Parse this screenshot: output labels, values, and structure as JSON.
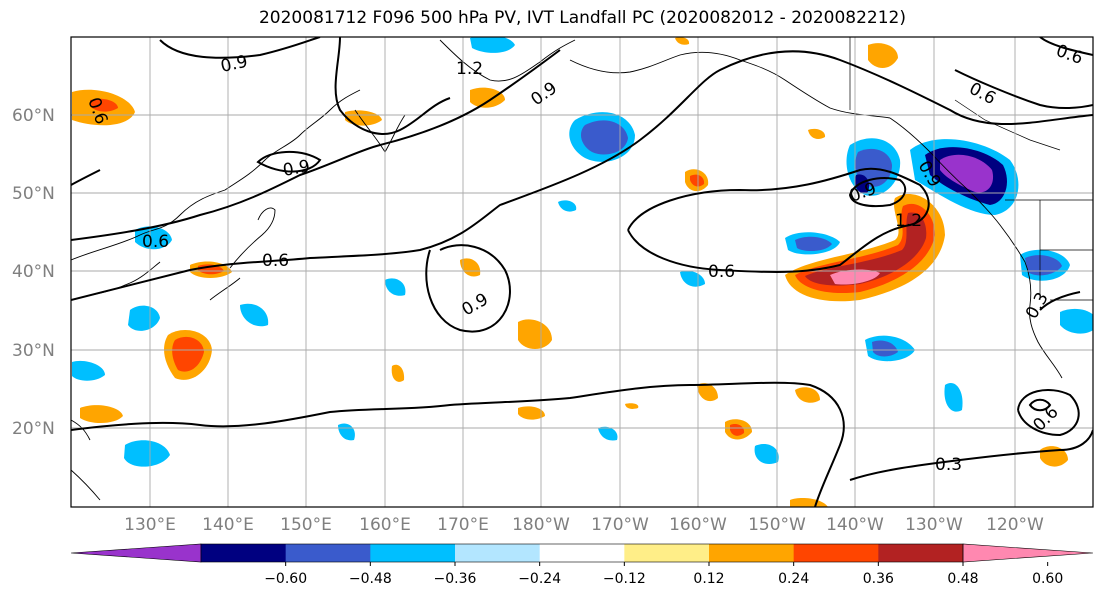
{
  "title": "2020081712 F096 500 hPa PV, IVT Landfall PC (2020082012 - 2020082212)",
  "map": {
    "lon_labels": [
      "130°E",
      "140°E",
      "150°E",
      "160°E",
      "170°E",
      "180°W",
      "170°W",
      "160°W",
      "150°W",
      "140°W",
      "130°W",
      "120°W"
    ],
    "lat_labels": [
      "60°N",
      "50°N",
      "40°N",
      "30°N",
      "20°N"
    ],
    "contour_labels": [
      "0.9",
      "1.2",
      "0.9",
      "0.9",
      "0.6",
      "0.6",
      "0.6",
      "0.9",
      "1.2",
      "0.9",
      "0.6",
      "0.6",
      "0.3",
      "0.3",
      "0.6",
      "0.6",
      "0.9"
    ]
  },
  "colorbar": {
    "ticks": [
      "−0.60",
      "−0.48",
      "−0.36",
      "−0.24",
      "−0.12",
      "0.12",
      "0.24",
      "0.36",
      "0.48",
      "0.60"
    ],
    "colors": [
      "#9933cc",
      "#000080",
      "#3a5bcc",
      "#00bfff",
      "#b3e6ff",
      "#ffffff",
      "#ffee88",
      "#ffa500",
      "#ff4500",
      "#b22222",
      "#ff88b0"
    ]
  }
}
